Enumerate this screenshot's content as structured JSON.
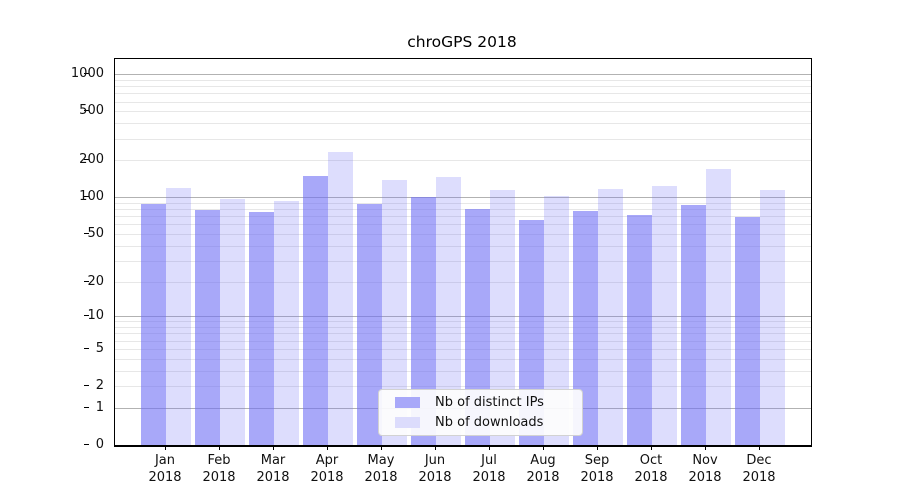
{
  "chart_data": {
    "type": "bar",
    "title": "chroGPS 2018",
    "x_tick_labels": [
      [
        "Jan",
        "2018"
      ],
      [
        "Feb",
        "2018"
      ],
      [
        "Mar",
        "2018"
      ],
      [
        "Apr",
        "2018"
      ],
      [
        "May",
        "2018"
      ],
      [
        "Jun",
        "2018"
      ],
      [
        "Jul",
        "2018"
      ],
      [
        "Aug",
        "2018"
      ],
      [
        "Sep",
        "2018"
      ],
      [
        "Oct",
        "2018"
      ],
      [
        "Nov",
        "2018"
      ],
      [
        "Dec",
        "2018"
      ]
    ],
    "series": [
      {
        "key": "distinct-ips",
        "name": "Nb of distinct IPs",
        "color": "rgba(110,110,245,0.6)",
        "color_hex_on_white": "#a8a8f9",
        "values": [
          88,
          79,
          76,
          150,
          88,
          100,
          81,
          65,
          77,
          72,
          87,
          69
        ]
      },
      {
        "key": "downloads",
        "name": "Nb of downloads",
        "color": "rgba(110,110,245,0.235)",
        "color_hex_on_white": "#dcdcfc",
        "values": [
          119,
          97,
          93,
          234,
          139,
          148,
          114,
          103,
          118,
          125,
          170,
          115
        ]
      }
    ],
    "y_axis": {
      "scale": "log10(1+v)",
      "tick_values": [
        0,
        1,
        2,
        5,
        10,
        20,
        50,
        100,
        200,
        500,
        1000
      ],
      "top_value": 1330,
      "major_grid_values": [
        1,
        10,
        100,
        1000
      ],
      "minor_grid_values": [
        2,
        3,
        4,
        5,
        6,
        7,
        8,
        9,
        20,
        30,
        40,
        50,
        60,
        70,
        80,
        90,
        200,
        300,
        400,
        500,
        600,
        700,
        800,
        900
      ]
    },
    "grid": {
      "major_color": "#b2b2b2",
      "minor_color": "#e7e7e7"
    },
    "legend": {
      "position": "bottom-center"
    },
    "ylabel": "",
    "xlabel": ""
  }
}
